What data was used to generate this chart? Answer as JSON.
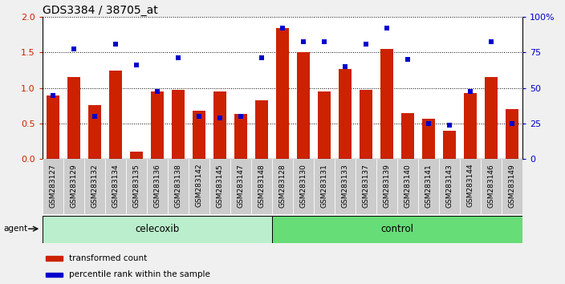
{
  "title": "GDS3384 / 38705_at",
  "samples": [
    "GSM283127",
    "GSM283129",
    "GSM283132",
    "GSM283134",
    "GSM283135",
    "GSM283136",
    "GSM283138",
    "GSM283142",
    "GSM283145",
    "GSM283147",
    "GSM283148",
    "GSM283128",
    "GSM283130",
    "GSM283131",
    "GSM283133",
    "GSM283137",
    "GSM283139",
    "GSM283140",
    "GSM283141",
    "GSM283143",
    "GSM283144",
    "GSM283146",
    "GSM283149"
  ],
  "red_values": [
    0.9,
    1.15,
    0.76,
    1.25,
    0.1,
    0.95,
    0.97,
    0.68,
    0.95,
    0.63,
    0.83,
    1.85,
    1.5,
    0.95,
    1.27,
    0.98,
    1.55,
    0.65,
    0.57,
    0.4,
    0.93,
    1.15,
    0.7
  ],
  "blue_values": [
    0.9,
    1.55,
    0.6,
    1.62,
    1.32,
    0.95,
    1.43,
    0.6,
    0.58,
    0.6,
    1.43,
    1.85,
    1.65,
    1.65,
    1.3,
    1.62,
    1.84,
    1.4,
    0.5,
    0.48,
    0.95,
    1.65,
    0.5
  ],
  "celecoxib_count": 11,
  "control_count": 12,
  "ylim_left": [
    0,
    2
  ],
  "ylim_right": [
    0,
    100
  ],
  "yticks_left": [
    0,
    0.5,
    1.0,
    1.5,
    2.0
  ],
  "yticks_right": [
    0,
    25,
    50,
    75,
    100
  ],
  "bar_color": "#cc2200",
  "dot_color": "#0000cc",
  "celecoxib_color": "#bbeecc",
  "control_color": "#66dd77",
  "agent_label": "agent",
  "celecoxib_label": "celecoxib",
  "control_label": "control",
  "legend_red": "transformed count",
  "legend_blue": "percentile rank within the sample",
  "bar_width": 0.6,
  "label_bg": "#cccccc",
  "fig_bg": "#f0f0f0"
}
